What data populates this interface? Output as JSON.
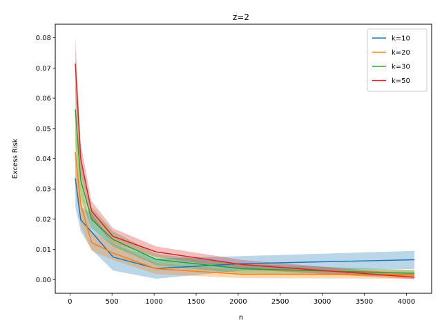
{
  "chart_data": {
    "type": "line",
    "title": "z=2",
    "xlabel": "n",
    "ylabel": "Excess Risk",
    "xlim": [
      -175,
      4300
    ],
    "ylim": [
      -0.0045,
      0.0845
    ],
    "xticks": [
      0,
      500,
      1000,
      1500,
      2000,
      2500,
      3000,
      3500,
      4000
    ],
    "yticks": [
      0.0,
      0.01,
      0.02,
      0.03,
      0.04,
      0.05,
      0.06,
      0.07,
      0.08
    ],
    "ytick_labels": [
      "0.00",
      "0.01",
      "0.02",
      "0.03",
      "0.04",
      "0.05",
      "0.06",
      "0.07",
      "0.08"
    ],
    "grid": false,
    "legend_position": "top-right",
    "x": [
      64,
      128,
      256,
      512,
      1024,
      2048,
      4096
    ],
    "series": [
      {
        "name": "k=10",
        "color": "#1f77b4",
        "values": [
          0.0335,
          0.0198,
          0.0158,
          0.0075,
          0.0037,
          0.0053,
          0.0066
        ],
        "lower": [
          0.024,
          0.016,
          0.01,
          0.003,
          0.0003,
          0.003,
          0.0035
        ],
        "upper": [
          0.043,
          0.024,
          0.022,
          0.012,
          0.007,
          0.0078,
          0.0095
        ]
      },
      {
        "name": "k=20",
        "color": "#ff7f0e",
        "values": [
          0.0422,
          0.025,
          0.0123,
          0.0088,
          0.0036,
          0.0018,
          0.0017
        ],
        "lower": [
          0.03,
          0.018,
          0.0095,
          0.0065,
          0.0018,
          0.0005,
          0.0003
        ],
        "upper": [
          0.055,
          0.033,
          0.016,
          0.012,
          0.0055,
          0.0032,
          0.0032
        ]
      },
      {
        "name": "k=30",
        "color": "#2ca02c",
        "values": [
          0.0563,
          0.033,
          0.02,
          0.0133,
          0.0067,
          0.0036,
          0.0021
        ],
        "lower": [
          0.045,
          0.027,
          0.017,
          0.011,
          0.0048,
          0.002,
          0.001
        ],
        "upper": [
          0.067,
          0.039,
          0.024,
          0.016,
          0.0085,
          0.0052,
          0.0032
        ]
      },
      {
        "name": "k=50",
        "color": "#d62728",
        "values": [
          0.0715,
          0.04,
          0.0227,
          0.0143,
          0.0092,
          0.005,
          0.0008
        ],
        "lower": [
          0.062,
          0.035,
          0.02,
          0.012,
          0.0075,
          0.0035,
          0.0001
        ],
        "upper": [
          0.08,
          0.045,
          0.026,
          0.017,
          0.011,
          0.0065,
          0.0018
        ]
      }
    ]
  }
}
